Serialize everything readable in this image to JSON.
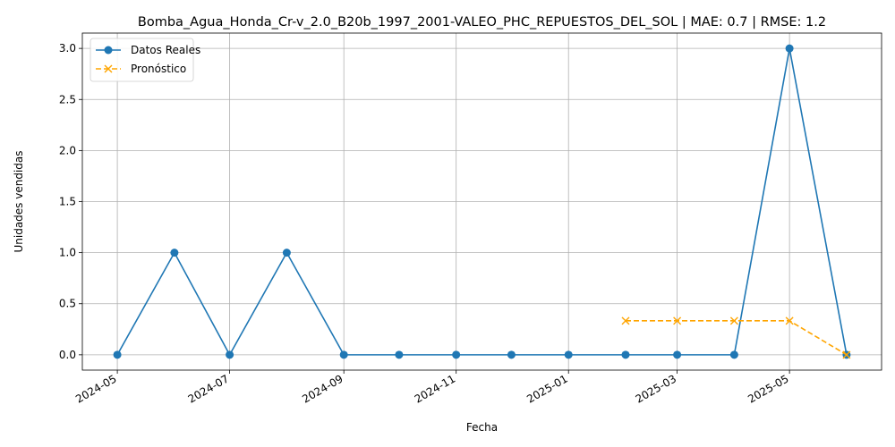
{
  "chart_data": {
    "type": "line",
    "title": "Bomba_Agua_Honda_Cr-v_2.0_B20b_1997_2001-VALEO_PHC_REPUESTOS_DEL_SOL | MAE: 0.7 | RMSE: 1.2",
    "xlabel": "Fecha",
    "ylabel": "Unidades vendidas",
    "ylim": [
      -0.15,
      3.15
    ],
    "xlim": [
      "2024-04-12",
      "2025-06-20"
    ],
    "y_ticks": [
      "0.0",
      "0.5",
      "1.0",
      "1.5",
      "2.0",
      "2.5",
      "3.0"
    ],
    "x_ticks": [
      "2024-05",
      "2024-07",
      "2024-09",
      "2024-11",
      "2025-01",
      "2025-03",
      "2025-05"
    ],
    "grid": true,
    "legend": "upper-left",
    "series": [
      {
        "name": "Datos Reales",
        "color": "#1f77b4",
        "style": "solid",
        "marker": "circle",
        "x": [
          "2024-05-01",
          "2024-06-01",
          "2024-07-01",
          "2024-08-01",
          "2024-09-01",
          "2024-10-01",
          "2024-11-01",
          "2024-12-01",
          "2025-01-01",
          "2025-02-01",
          "2025-03-01",
          "2025-04-01",
          "2025-05-01",
          "2025-06-01"
        ],
        "values": [
          0,
          1,
          0,
          1,
          0,
          0,
          0,
          0,
          0,
          0,
          0,
          0,
          3,
          0
        ]
      },
      {
        "name": "Pronóstico",
        "color": "#ffa500",
        "style": "dashed",
        "marker": "x",
        "x": [
          "2025-02-01",
          "2025-03-01",
          "2025-04-01",
          "2025-05-01",
          "2025-06-01"
        ],
        "values": [
          0.333,
          0.333,
          0.333,
          0.333,
          0
        ]
      }
    ]
  }
}
